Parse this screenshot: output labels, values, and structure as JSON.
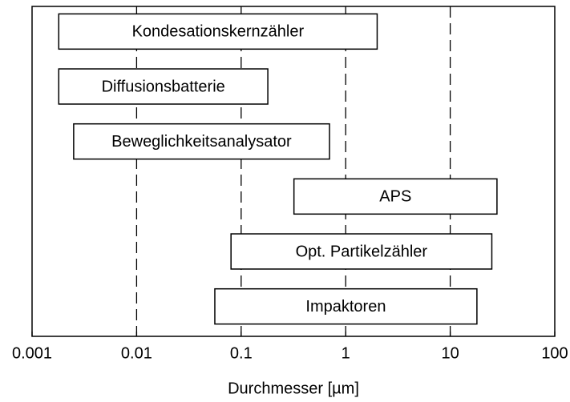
{
  "chart_data": {
    "type": "range-bar",
    "xlabel": "Durchmesser [µm]",
    "xscale": "log",
    "xlim": [
      0.001,
      100
    ],
    "xticks": [
      0.001,
      0.01,
      0.1,
      1,
      10,
      100
    ],
    "grid": true,
    "color": "#ffffff",
    "categories": [
      "Kondesationskernzähler",
      "Diffusionsbatterie",
      "Beweglichkeitsanalysator",
      "APS",
      "Opt. Partikelzähler",
      "Impaktoren"
    ],
    "ranges": [
      [
        0.0018,
        2
      ],
      [
        0.0018,
        0.18
      ],
      [
        0.0025,
        0.7
      ],
      [
        0.32,
        28
      ],
      [
        0.08,
        25
      ],
      [
        0.056,
        18
      ]
    ]
  }
}
